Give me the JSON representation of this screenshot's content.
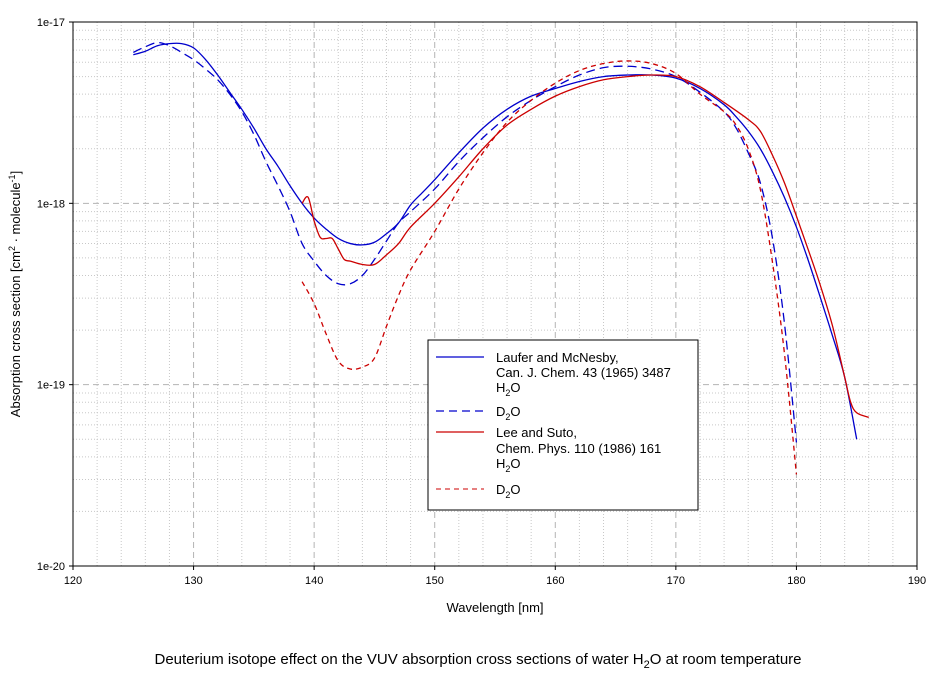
{
  "chart_data": {
    "type": "line",
    "title": "",
    "caption": {
      "text": "Deuterium isotope effect on the VUV absorption cross sections of water H",
      "sub": "2",
      "suffix": "O at room temperature"
    },
    "xlabel": "Wavelength [nm]",
    "ylabel": {
      "part1": "Absorption cross section [cm",
      "sup1": "2",
      "part2": " · molecule",
      "sup2": "-1",
      "part3": "]"
    },
    "xlim": [
      120,
      190
    ],
    "ylim": [
      1e-20,
      1e-17
    ],
    "yscale": "log",
    "x_ticks": [
      120,
      130,
      140,
      150,
      160,
      170,
      180,
      190
    ],
    "x_tick_labels": [
      "120",
      "130",
      "140",
      "150",
      "160",
      "170",
      "180",
      "190"
    ],
    "y_ticks": [
      1e-20,
      1e-19,
      1e-18,
      1e-17
    ],
    "y_tick_labels": [
      "1e-20",
      "1e-19",
      "1e-18",
      "1e-17"
    ],
    "grid": true,
    "legend": {
      "position": "center",
      "entries": [
        {
          "lines": [
            "Laufer and McNesby,",
            "Can. J. Chem. 43 (1965) 3487"
          ],
          "species": "H",
          "species_sub": "2",
          "species_suffix": "O"
        },
        {
          "lines": [],
          "species": "D",
          "species_sub": "2",
          "species_suffix": "O"
        },
        {
          "lines": [
            "Lee and Suto,",
            "Chem. Phys. 110 (1986) 161"
          ],
          "species": "H",
          "species_sub": "2",
          "species_suffix": "O"
        },
        {
          "lines": [],
          "species": "D",
          "species_sub": "2",
          "species_suffix": "O"
        }
      ]
    },
    "series": [
      {
        "name": "Laufer and McNesby H2O",
        "color": "#0000cc",
        "dash": "solid",
        "x": [
          125,
          126,
          127,
          128,
          129,
          130,
          131,
          132,
          133,
          134,
          135,
          136,
          137,
          138,
          139,
          140,
          141,
          142,
          143,
          144,
          145,
          146,
          147,
          148,
          149,
          150,
          152,
          154,
          156,
          158,
          160,
          162,
          164,
          166,
          168,
          170,
          172,
          174,
          175,
          176,
          177,
          178,
          179,
          180,
          181,
          182,
          183,
          184,
          185
        ],
        "y": [
          6.6e-18,
          6.9e-18,
          7.4e-18,
          7.6e-18,
          7.6e-18,
          7.2e-18,
          6.2e-18,
          5.1e-18,
          4.1e-18,
          3.3e-18,
          2.6e-18,
          2e-18,
          1.6e-18,
          1.25e-18,
          1e-18,
          8.3e-19,
          7.2e-19,
          6.4e-19,
          6e-19,
          5.9e-19,
          6.1e-19,
          6.8e-19,
          7.8e-19,
          9.8e-19,
          1.15e-18,
          1.35e-18,
          1.9e-18,
          2.6e-18,
          3.3e-18,
          3.9e-18,
          4.3e-18,
          4.7e-18,
          5e-18,
          5.1e-18,
          5.1e-18,
          4.9e-18,
          4.3e-18,
          3.5e-18,
          3e-18,
          2.5e-18,
          2e-18,
          1.5e-18,
          1.08e-18,
          7.4e-19,
          4.8e-19,
          3e-19,
          1.85e-19,
          1.1e-19,
          5e-20
        ]
      },
      {
        "name": "Laufer and McNesby D2O",
        "color": "#0000cc",
        "dash": "dashed",
        "x": [
          125,
          126,
          127,
          128,
          129,
          130,
          131,
          132,
          133,
          134,
          135,
          136,
          137,
          138,
          139,
          140,
          141,
          142,
          143,
          144,
          145,
          146,
          147,
          148,
          150,
          152,
          154,
          156,
          158,
          160,
          162,
          164,
          166,
          168,
          170,
          172,
          174,
          175,
          176,
          177,
          178,
          179,
          180
        ],
        "y": [
          6.8e-18,
          7.3e-18,
          7.7e-18,
          7.4e-18,
          6.8e-18,
          6.2e-18,
          5.5e-18,
          4.8e-18,
          4e-18,
          3.2e-18,
          2.4e-18,
          1.7e-18,
          1.25e-18,
          9e-19,
          6e-19,
          4.8e-19,
          4e-19,
          3.6e-19,
          3.6e-19,
          4e-19,
          4.9e-19,
          6.2e-19,
          7.8e-19,
          9e-19,
          1.2e-18,
          1.7e-18,
          2.3e-18,
          3e-18,
          3.7e-18,
          4.4e-18,
          5.1e-18,
          5.6e-18,
          5.7e-18,
          5.5e-18,
          5e-18,
          4.1e-18,
          3.2e-18,
          2.6e-18,
          1.9e-18,
          1.3e-18,
          6.5e-19,
          2.2e-19,
          4.8e-20
        ]
      },
      {
        "name": "Lee and Suto H2O",
        "color": "#cc0000",
        "dash": "solid",
        "x": [
          139,
          139.5,
          140,
          140.5,
          141,
          141.5,
          142,
          142.5,
          143,
          144,
          145,
          146,
          147,
          148,
          150,
          152,
          154,
          156,
          158,
          160,
          162,
          164,
          166,
          168,
          170,
          172,
          174,
          176,
          177,
          178,
          179,
          180,
          181,
          182,
          183,
          184,
          184.5,
          185,
          186
        ],
        "y": [
          1e-18,
          1.08e-18,
          8e-19,
          6.5e-19,
          6.4e-19,
          6.4e-19,
          5.6e-19,
          4.9e-19,
          4.8e-19,
          4.6e-19,
          4.6e-19,
          5.2e-19,
          6e-19,
          7.4e-19,
          1e-18,
          1.4e-18,
          2e-18,
          2.7e-18,
          3.3e-18,
          3.9e-18,
          4.4e-18,
          4.8e-18,
          5e-18,
          5.1e-18,
          5e-18,
          4.4e-18,
          3.6e-18,
          2.9e-18,
          2.5e-18,
          1.85e-18,
          1.3e-18,
          8.5e-19,
          5.5e-19,
          3.5e-19,
          2.1e-19,
          1.1e-19,
          8e-20,
          7e-20,
          6.6e-20
        ]
      },
      {
        "name": "Lee and Suto D2O",
        "color": "#cc0000",
        "dash": "dashed",
        "x": [
          139,
          140,
          141,
          142,
          143,
          144,
          145,
          146,
          147,
          148,
          150,
          152,
          154,
          156,
          158,
          160,
          162,
          164,
          166,
          168,
          170,
          172,
          174,
          175,
          176,
          177,
          178,
          179,
          180
        ],
        "y": [
          3.7e-19,
          2.8e-19,
          1.9e-19,
          1.35e-19,
          1.22e-19,
          1.25e-19,
          1.4e-19,
          2.1e-19,
          3.1e-19,
          4.3e-19,
          7e-19,
          1.2e-18,
          1.9e-18,
          2.8e-18,
          3.7e-18,
          4.6e-18,
          5.4e-18,
          5.9e-18,
          6.1e-18,
          5.9e-18,
          5.2e-18,
          4e-18,
          3.2e-18,
          2.7e-18,
          2e-18,
          1.2e-18,
          4.8e-19,
          1.5e-19,
          3.2e-20
        ]
      }
    ]
  }
}
